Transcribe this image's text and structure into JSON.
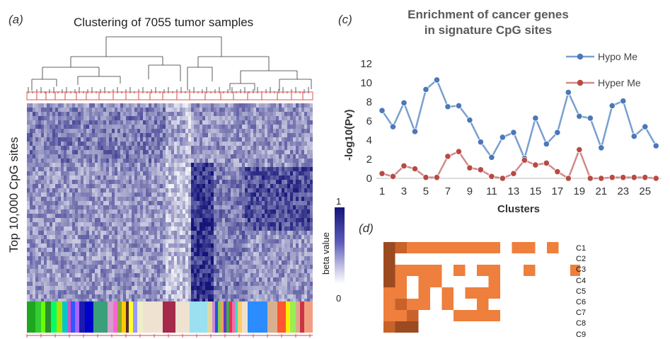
{
  "panel_a": {
    "label": "(a)",
    "title": "Clustering of 7055 tumor samples",
    "ylabel": "Top 10,000 CpG sites",
    "colorbar": {
      "label": "beta value",
      "max": "1",
      "min": "0",
      "color_high": "#14147a",
      "color_low": "#ffffff"
    }
  },
  "panel_c": {
    "label": "(c)",
    "title_line1": "Enrichment of cancer genes",
    "title_line2": "in signature CpG sites"
  },
  "panel_d": {
    "label": "(d)",
    "rows": [
      "C1",
      "C2",
      "C3",
      "C4",
      "C5",
      "C6",
      "C7",
      "C8",
      "C9"
    ]
  },
  "chart_data": {
    "type": "line",
    "title": "Enrichment of cancer genes in signature CpG sites",
    "xlabel": "Clusters",
    "ylabel": "-log10(Pv)",
    "ylim": [
      0,
      12
    ],
    "yticks": [
      0,
      2,
      4,
      6,
      8,
      10,
      12
    ],
    "xticks": [
      1,
      3,
      5,
      7,
      9,
      11,
      13,
      15,
      17,
      19,
      21,
      23,
      25
    ],
    "x": [
      1,
      2,
      3,
      4,
      5,
      6,
      7,
      8,
      9,
      10,
      11,
      12,
      13,
      14,
      15,
      16,
      17,
      18,
      19,
      20,
      21,
      22,
      23,
      24,
      25,
      26
    ],
    "legend_position": "top-right",
    "series": [
      {
        "name": "Hypo Me",
        "color": "#7a9fcf",
        "marker": "#4a78b8",
        "values": [
          7.1,
          5.4,
          7.9,
          4.9,
          9.3,
          10.3,
          7.5,
          7.6,
          6.1,
          3.8,
          2.2,
          4.3,
          4.8,
          2.1,
          6.3,
          3.6,
          4.8,
          9.0,
          6.5,
          6.3,
          3.2,
          7.6,
          8.1,
          4.4,
          5.4,
          3.4
        ]
      },
      {
        "name": "Hyper Me",
        "color": "#d08a8a",
        "marker": "#b84a44",
        "values": [
          0.5,
          0.2,
          1.3,
          1.0,
          0.1,
          0.1,
          2.3,
          2.8,
          1.1,
          0.9,
          0.2,
          0.0,
          0.5,
          1.9,
          1.4,
          1.6,
          0.7,
          0.0,
          3.0,
          0.0,
          0.0,
          0.1,
          0.1,
          0.1,
          0.1,
          0.0
        ]
      }
    ]
  }
}
